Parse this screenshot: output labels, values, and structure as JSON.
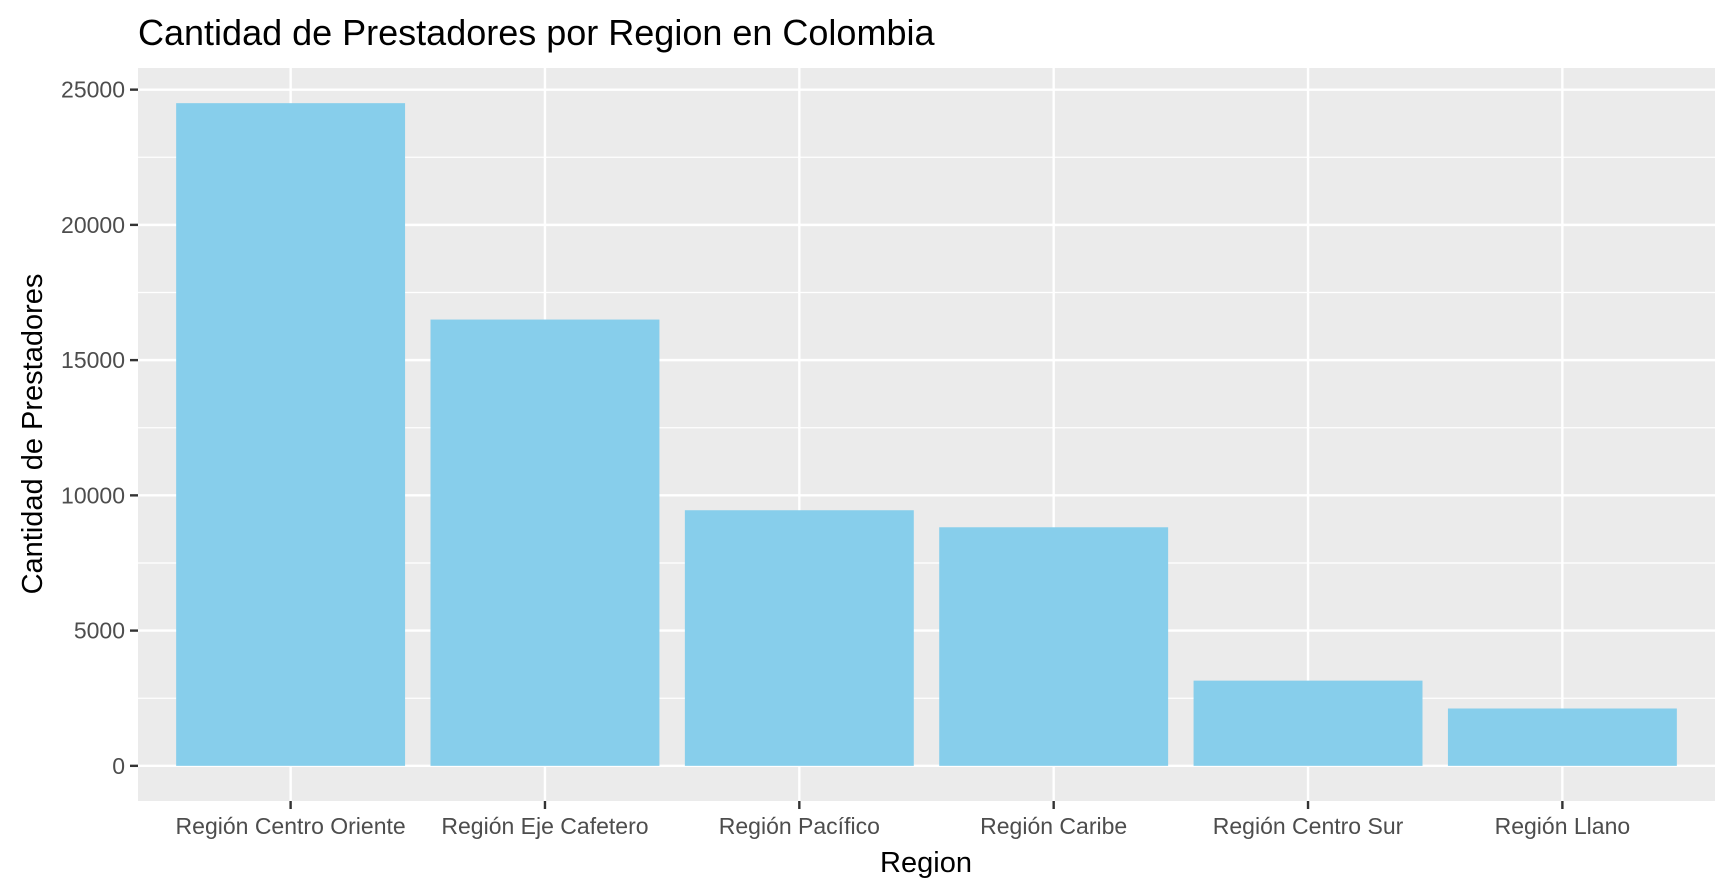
{
  "chart_data": {
    "type": "bar",
    "title": "Cantidad de Prestadores por Region en Colombia",
    "xlabel": "Region",
    "ylabel": "Cantidad de Prestadores",
    "categories": [
      "Región Centro Oriente",
      "Región Eje Cafetero",
      "Región Pacífico",
      "Región Caribe",
      "Región Centro Sur",
      "Región Llano"
    ],
    "values": [
      24500,
      16500,
      9450,
      8820,
      3150,
      2120
    ],
    "ylim": [
      -1300,
      25800
    ],
    "yticks": [
      0,
      5000,
      10000,
      15000,
      20000,
      25000
    ],
    "ytick_labels": [
      "0",
      "5000",
      "10000",
      "15000",
      "20000",
      "25000"
    ],
    "grid": true,
    "legend": "none",
    "colors": {
      "bar": "#87CEEB",
      "panel": "#EBEBEB",
      "grid": "#FFFFFF",
      "tick": "#333333"
    }
  }
}
